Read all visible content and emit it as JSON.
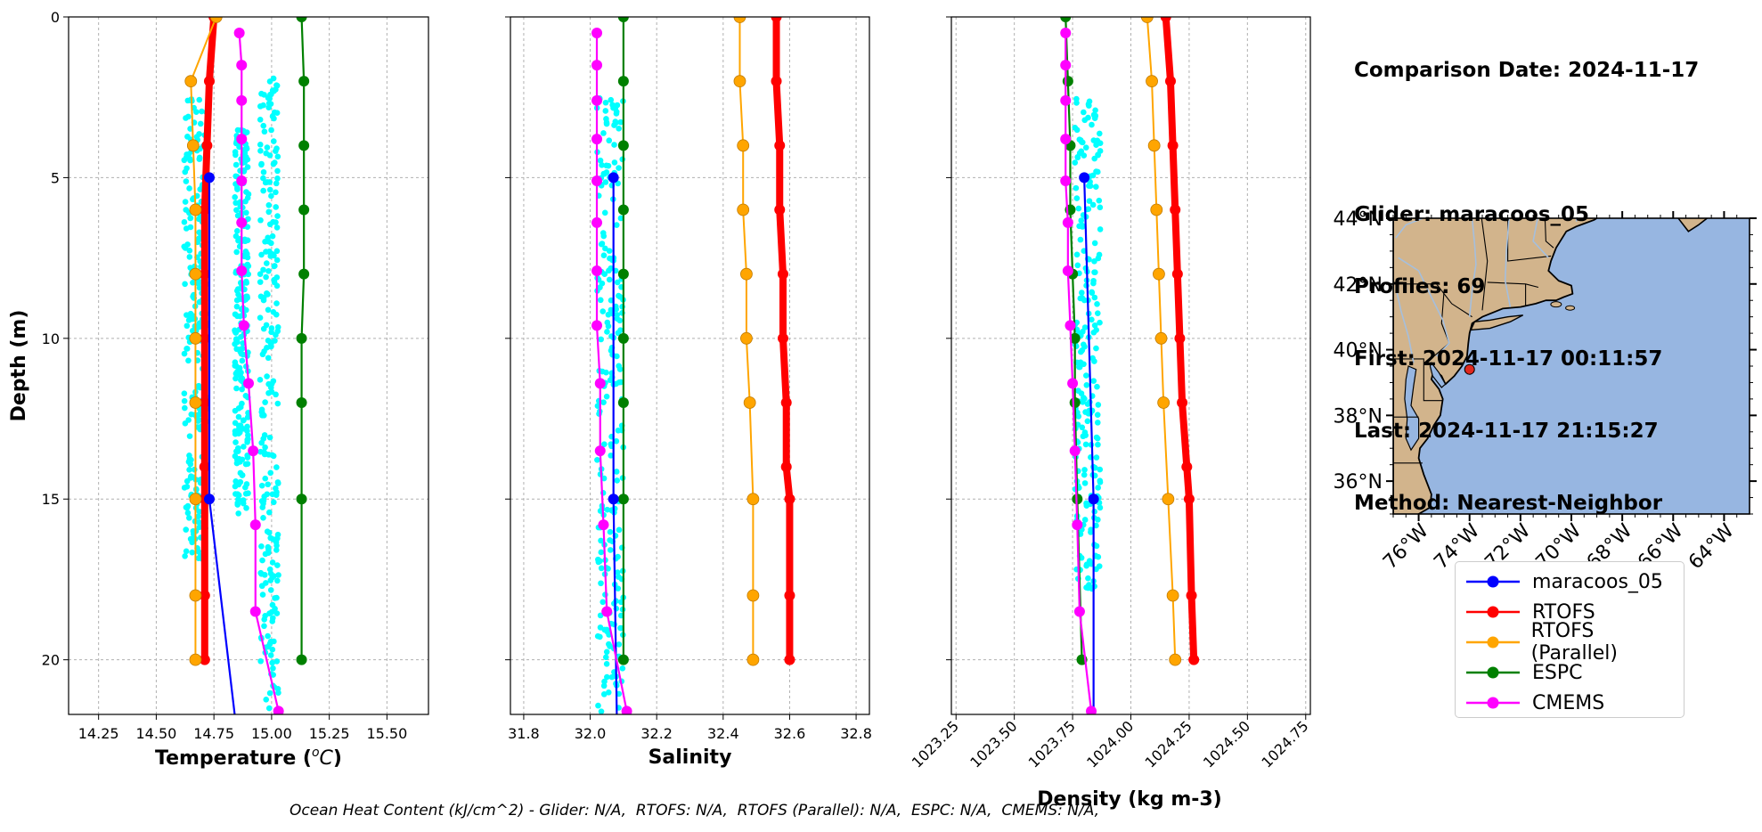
{
  "info": {
    "comparison_date": "Comparison Date: 2024-11-17",
    "glider": "Glider: maracoos_05",
    "profiles": "Profiles: 69",
    "first": "First: 2024-11-17 00:11:57",
    "last": "Last: 2024-11-17 21:15:27",
    "method": "Method: Nearest-Neighbor"
  },
  "footer": "Ocean Heat Content (kJ/cm^2) - Glider: N/A,  RTOFS: N/A,  RTOFS (Parallel): N/A,  ESPC: N/A,  CMEMS: N/A,",
  "colors": {
    "glider_scatter": "#00ffff",
    "maracoos_05": "#0000ff",
    "RTOFS": "#ff0000",
    "RTOFS (Parallel)": "#ffa500",
    "ESPC": "#008000",
    "CMEMS": "#ff00ff",
    "land": "#d2b48c",
    "ocean": "#97b6e1",
    "rivers": "#a5bfdd",
    "glider_position": "#e0281e"
  },
  "legend": [
    "maracoos_05",
    "RTOFS",
    "RTOFS (Parallel)",
    "ESPC",
    "CMEMS"
  ],
  "chart_data": [
    {
      "type": "line",
      "xlabel": "Temperature",
      "xlabel_unit": "(°C)",
      "ylabel": "Depth (m)",
      "xlim": [
        14.12,
        15.68
      ],
      "ylim": [
        21.7,
        0
      ],
      "xticks": [
        "14.25",
        "14.50",
        "14.75",
        "15.00",
        "15.25",
        "15.50"
      ],
      "xtick_values": [
        14.25,
        14.5,
        14.75,
        15.0,
        15.25,
        15.5
      ],
      "yticks": [
        "0",
        "5",
        "10",
        "15",
        "20"
      ],
      "ytick_values": [
        0,
        5,
        10,
        15,
        20
      ],
      "grid": true,
      "glider_scatter": {
        "name": "maracoos_05",
        "clusters": [
          {
            "x_min": 14.62,
            "x_max": 14.72,
            "depth_min": 2.5,
            "depth_max": 16.9
          },
          {
            "x_min": 14.95,
            "x_max": 15.03,
            "depth_min": 1.9,
            "depth_max": 21.7
          },
          {
            "x_min": 14.84,
            "x_max": 14.9,
            "depth_min": 3.5,
            "depth_max": 15.5
          }
        ]
      },
      "series": [
        {
          "name": "maracoos_05",
          "x": [
            14.73,
            14.73,
            14.84
          ],
          "depth": [
            5,
            15,
            21.7
          ],
          "markers": [
            true,
            true,
            false
          ]
        },
        {
          "name": "RTOFS",
          "x": [
            14.75,
            14.73,
            14.72,
            14.71,
            14.71,
            14.71,
            14.71,
            14.71,
            14.71,
            14.71,
            14.71
          ],
          "depth": [
            0,
            2,
            4,
            6,
            8,
            10,
            12,
            14,
            15,
            18,
            20
          ]
        },
        {
          "name": "RTOFS (Parallel)",
          "x": [
            14.76,
            14.65,
            14.66,
            14.67,
            14.67,
            14.67,
            14.67,
            14.67,
            14.67,
            14.67
          ],
          "depth": [
            0,
            2,
            4,
            6,
            8,
            10,
            12,
            15,
            18,
            20
          ]
        },
        {
          "name": "ESPC",
          "x": [
            15.13,
            15.14,
            15.14,
            15.14,
            15.14,
            15.13,
            15.13,
            15.13,
            15.13
          ],
          "depth": [
            0,
            2,
            4,
            6,
            8,
            10,
            12,
            15,
            20
          ]
        },
        {
          "name": "CMEMS",
          "x": [
            14.86,
            14.87,
            14.87,
            14.87,
            14.87,
            14.87,
            14.87,
            14.88,
            14.9,
            14.92,
            14.93,
            14.93,
            15.03
          ],
          "depth": [
            0.5,
            1.5,
            2.6,
            3.8,
            5.1,
            6.4,
            7.9,
            9.6,
            11.4,
            13.5,
            15.8,
            18.5,
            21.6
          ]
        }
      ]
    },
    {
      "type": "line",
      "xlabel": "Salinity",
      "xlim": [
        31.76,
        32.84
      ],
      "ylim": [
        21.7,
        0
      ],
      "xticks": [
        "31.8",
        "32.0",
        "32.2",
        "32.4",
        "32.6",
        "32.8"
      ],
      "xtick_values": [
        31.8,
        32.0,
        32.2,
        32.4,
        32.6,
        32.8
      ],
      "grid": true,
      "glider_scatter": {
        "name": "maracoos_05",
        "clusters": [
          {
            "x_min": 32.02,
            "x_max": 32.1,
            "depth_min": 2.5,
            "depth_max": 21.7
          }
        ]
      },
      "series": [
        {
          "name": "maracoos_05",
          "x": [
            32.07,
            32.07,
            32.08
          ],
          "depth": [
            5,
            15,
            21.7
          ],
          "markers": [
            true,
            true,
            false
          ]
        },
        {
          "name": "RTOFS",
          "x": [
            32.56,
            32.56,
            32.57,
            32.57,
            32.58,
            32.58,
            32.59,
            32.59,
            32.6,
            32.6,
            32.6
          ],
          "depth": [
            0,
            2,
            4,
            6,
            8,
            10,
            12,
            14,
            15,
            18,
            20
          ]
        },
        {
          "name": "RTOFS (Parallel)",
          "x": [
            32.45,
            32.45,
            32.46,
            32.46,
            32.47,
            32.47,
            32.48,
            32.49,
            32.49,
            32.49
          ],
          "depth": [
            0,
            2,
            4,
            6,
            8,
            10,
            12,
            15,
            18,
            20
          ]
        },
        {
          "name": "ESPC",
          "x": [
            32.1,
            32.1,
            32.1,
            32.1,
            32.1,
            32.1,
            32.1,
            32.1,
            32.1
          ],
          "depth": [
            0,
            2,
            4,
            6,
            8,
            10,
            12,
            15,
            20
          ]
        },
        {
          "name": "CMEMS",
          "x": [
            32.02,
            32.02,
            32.02,
            32.02,
            32.02,
            32.02,
            32.02,
            32.02,
            32.03,
            32.03,
            32.04,
            32.05,
            32.11
          ],
          "depth": [
            0.5,
            1.5,
            2.6,
            3.8,
            5.1,
            6.4,
            7.9,
            9.6,
            11.4,
            13.5,
            15.8,
            18.5,
            21.6
          ]
        }
      ]
    },
    {
      "type": "line",
      "xlabel": "Density (kg m-3)",
      "xlim": [
        1023.23,
        1024.77
      ],
      "ylim": [
        21.7,
        0
      ],
      "xticks": [
        "1023.25",
        "1023.50",
        "1023.75",
        "1024.00",
        "1024.25",
        "1024.50",
        "1024.75"
      ],
      "xtick_values": [
        1023.25,
        1023.5,
        1023.75,
        1024.0,
        1024.25,
        1024.5,
        1024.75
      ],
      "grid": true,
      "glider_scatter": {
        "name": "maracoos_05",
        "clusters": [
          {
            "x_min": 1023.76,
            "x_max": 1023.87,
            "depth_min": 2.5,
            "depth_max": 17.8
          }
        ]
      },
      "series": [
        {
          "name": "maracoos_05",
          "x": [
            1023.8,
            1023.84,
            1023.84
          ],
          "depth": [
            5,
            15,
            21.7
          ],
          "markers": [
            true,
            true,
            false
          ]
        },
        {
          "name": "RTOFS",
          "x": [
            1024.15,
            1024.17,
            1024.18,
            1024.19,
            1024.2,
            1024.21,
            1024.22,
            1024.24,
            1024.25,
            1024.26,
            1024.27
          ],
          "depth": [
            0,
            2,
            4,
            6,
            8,
            10,
            12,
            14,
            15,
            18,
            20
          ]
        },
        {
          "name": "RTOFS (Parallel)",
          "x": [
            1024.07,
            1024.09,
            1024.1,
            1024.11,
            1024.12,
            1024.13,
            1024.14,
            1024.16,
            1024.18,
            1024.19
          ],
          "depth": [
            0,
            2,
            4,
            6,
            8,
            10,
            12,
            15,
            18,
            20
          ]
        },
        {
          "name": "ESPC",
          "x": [
            1023.72,
            1023.73,
            1023.74,
            1023.74,
            1023.75,
            1023.76,
            1023.76,
            1023.77,
            1023.79
          ],
          "depth": [
            0,
            2,
            4,
            6,
            8,
            10,
            12,
            15,
            20
          ]
        },
        {
          "name": "CMEMS",
          "x": [
            1023.72,
            1023.72,
            1023.72,
            1023.72,
            1023.72,
            1023.73,
            1023.73,
            1023.74,
            1023.75,
            1023.76,
            1023.77,
            1023.78,
            1023.83
          ],
          "depth": [
            0.5,
            1.5,
            2.6,
            3.8,
            5.1,
            6.4,
            7.9,
            9.6,
            11.4,
            13.5,
            15.8,
            18.5,
            21.6
          ]
        }
      ]
    },
    {
      "type": "map",
      "lon_range": [
        -77,
        -63
      ],
      "lat_range": [
        35,
        44
      ],
      "xticks": [
        "76°W",
        "74°W",
        "72°W",
        "70°W",
        "68°W",
        "66°W",
        "64°W"
      ],
      "xtick_values": [
        -76,
        -74,
        -72,
        -70,
        -68,
        -66,
        -64
      ],
      "yticks": [
        "36°N",
        "38°N",
        "40°N",
        "42°N",
        "44°N"
      ],
      "ytick_values": [
        36,
        38,
        40,
        42,
        44
      ],
      "glider_position": {
        "lon": -74.0,
        "lat": 39.4
      }
    }
  ]
}
